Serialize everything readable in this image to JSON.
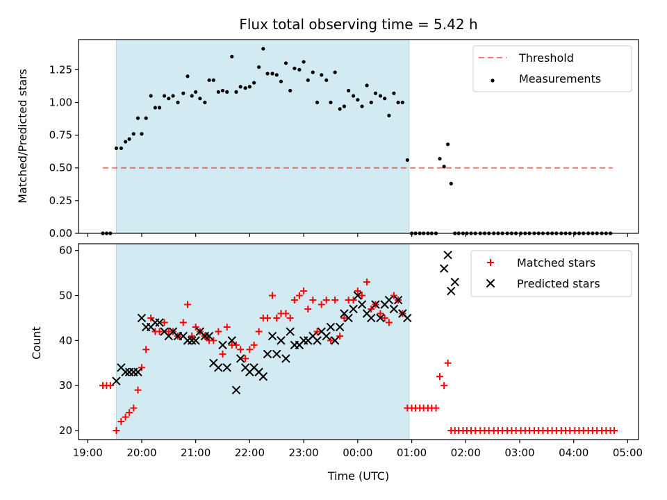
{
  "chart_data": {
    "title": "Flux total observing time = 5.42 h",
    "xlabel": "Time (UTC)",
    "x_ticks": [
      "19:00",
      "20:00",
      "21:00",
      "22:00",
      "23:00",
      "00:00",
      "01:00",
      "02:00",
      "03:00",
      "04:00",
      "05:00"
    ],
    "x_tick_hours": [
      19,
      20,
      21,
      22,
      23,
      24,
      25,
      26,
      27,
      28,
      29
    ],
    "x_range_hours": [
      18.83,
      29.2
    ],
    "observing_window_hours": [
      19.53,
      24.95
    ],
    "colors": {
      "shade": "#add8e6",
      "threshold": "#ff0000",
      "measurements": "#000000",
      "matched": "#ff0000",
      "predicted": "#000000"
    },
    "panels": [
      {
        "type": "scatter",
        "ylabel": "Matched/Predicted stars",
        "ylim": [
          0,
          1.48
        ],
        "y_ticks": [
          "0.00",
          "0.25",
          "0.50",
          "0.75",
          "1.00",
          "1.25"
        ],
        "y_tick_values": [
          0,
          0.25,
          0.5,
          0.75,
          1.0,
          1.25
        ],
        "legend_position": "top-right",
        "threshold": {
          "name": "Threshold",
          "value": 0.5,
          "x_range_hours": [
            19.28,
            28.72
          ]
        },
        "series": [
          {
            "name": "Measurements",
            "x": [
              19.28,
              19.35,
              19.42,
              19.53,
              19.62,
              19.7,
              19.77,
              19.85,
              19.93,
              20.0,
              20.08,
              20.17,
              20.25,
              20.33,
              20.42,
              20.5,
              20.58,
              20.67,
              20.77,
              20.85,
              20.93,
              21.0,
              21.08,
              21.17,
              21.25,
              21.33,
              21.42,
              21.5,
              21.58,
              21.67,
              21.75,
              21.83,
              21.92,
              22.0,
              22.08,
              22.17,
              22.25,
              22.33,
              22.42,
              22.5,
              22.58,
              22.67,
              22.75,
              22.83,
              22.92,
              23.0,
              23.08,
              23.17,
              23.25,
              23.33,
              23.42,
              23.5,
              23.58,
              23.67,
              23.75,
              23.83,
              23.92,
              24.0,
              24.08,
              24.17,
              24.25,
              24.33,
              24.42,
              24.5,
              24.58,
              24.67,
              24.75,
              24.83,
              24.92,
              25.0,
              25.07,
              25.15,
              25.22,
              25.3,
              25.37,
              25.45,
              25.52,
              25.6,
              25.67,
              25.73,
              25.8,
              25.87,
              25.95,
              26.02,
              26.1,
              26.18,
              26.27,
              26.35,
              26.43,
              26.52,
              26.6,
              26.68,
              26.77,
              26.85,
              26.93,
              27.02,
              27.1,
              27.18,
              27.27,
              27.35,
              27.43,
              27.52,
              27.6,
              27.68,
              27.77,
              27.85,
              27.93,
              28.02,
              28.1,
              28.18,
              28.27,
              28.35,
              28.43,
              28.52,
              28.6,
              28.68
            ],
            "y": [
              0,
              0,
              0,
              0.65,
              0.65,
              0.7,
              0.72,
              0.76,
              0.88,
              0.76,
              0.88,
              1.05,
              0.96,
              0.96,
              1.05,
              1.03,
              1.05,
              1.0,
              1.07,
              1.2,
              1.05,
              1.08,
              1.03,
              1.0,
              1.17,
              1.17,
              1.08,
              1.09,
              1.08,
              1.35,
              1.08,
              1.12,
              1.11,
              1.12,
              1.15,
              1.27,
              1.41,
              1.22,
              1.22,
              1.21,
              1.16,
              1.3,
              1.09,
              1.26,
              1.25,
              1.31,
              1.17,
              1.23,
              1.0,
              1.21,
              1.17,
              1.0,
              1.23,
              0.95,
              0.97,
              1.09,
              1.05,
              1.02,
              0.97,
              1.13,
              1.0,
              1.07,
              1.05,
              1.03,
              0.9,
              1.07,
              1.0,
              1.0,
              0.56,
              0,
              0,
              0,
              0,
              0,
              0,
              0,
              0.57,
              0.51,
              0.68,
              0.38,
              0,
              0,
              0,
              0,
              0,
              0,
              0,
              0,
              0,
              0,
              0,
              0,
              0,
              0,
              0,
              0,
              0,
              0,
              0,
              0,
              0,
              0,
              0,
              0,
              0,
              0,
              0,
              0,
              0,
              0,
              0,
              0,
              0,
              0,
              0,
              0
            ]
          }
        ]
      },
      {
        "type": "scatter",
        "ylabel": "Count",
        "ylim": [
          18,
          61.5
        ],
        "y_ticks": [
          "20",
          "30",
          "40",
          "50",
          "60"
        ],
        "y_tick_values": [
          20,
          30,
          40,
          50,
          60
        ],
        "legend_position": "top-right",
        "series": [
          {
            "name": "Matched stars",
            "marker": "plus",
            "x": [
              19.28,
              19.35,
              19.42,
              19.53,
              19.62,
              19.7,
              19.77,
              19.85,
              19.93,
              20.0,
              20.08,
              20.17,
              20.25,
              20.33,
              20.42,
              20.5,
              20.58,
              20.67,
              20.77,
              20.85,
              20.93,
              21.0,
              21.08,
              21.17,
              21.25,
              21.33,
              21.42,
              21.5,
              21.58,
              21.67,
              21.75,
              21.83,
              21.92,
              22.0,
              22.08,
              22.17,
              22.25,
              22.33,
              22.42,
              22.5,
              22.58,
              22.67,
              22.75,
              22.83,
              22.92,
              23.0,
              23.08,
              23.17,
              23.25,
              23.33,
              23.42,
              23.5,
              23.58,
              23.67,
              23.75,
              23.83,
              23.92,
              24.0,
              24.08,
              24.17,
              24.25,
              24.33,
              24.42,
              24.5,
              24.58,
              24.67,
              24.75,
              24.83,
              24.92,
              25.0,
              25.07,
              25.15,
              25.22,
              25.3,
              25.37,
              25.45,
              25.52,
              25.6,
              25.67,
              25.73,
              25.8,
              25.87,
              25.95,
              26.02,
              26.1,
              26.18,
              26.27,
              26.35,
              26.43,
              26.52,
              26.6,
              26.68,
              26.77,
              26.85,
              26.93,
              27.02,
              27.1,
              27.18,
              27.27,
              27.35,
              27.43,
              27.52,
              27.6,
              27.68,
              27.77,
              27.85,
              27.93,
              28.02,
              28.1,
              28.18,
              28.27,
              28.35,
              28.43,
              28.52,
              28.6,
              28.68,
              28.75
            ],
            "y": [
              30,
              30,
              30,
              20,
              22,
              23,
              24,
              25,
              29,
              34,
              38,
              45,
              42,
              42,
              44,
              42,
              42,
              41,
              44,
              48,
              41,
              43,
              42,
              41,
              40,
              40,
              42,
              37,
              43,
              39,
              39,
              38,
              36,
              38,
              39,
              42,
              45,
              45,
              50,
              45,
              46,
              46,
              45,
              49,
              50,
              51,
              47,
              49,
              42,
              48,
              49,
              40,
              49,
              41,
              45,
              49,
              49,
              51,
              50,
              53,
              47,
              48,
              46,
              45,
              44,
              50,
              49,
              46,
              25,
              25,
              25,
              25,
              25,
              25,
              25,
              25,
              32,
              30,
              35,
              20,
              20,
              20,
              20,
              20,
              20,
              20,
              20,
              20,
              20,
              20,
              20,
              20,
              20,
              20,
              20,
              20,
              20,
              20,
              20,
              20,
              20,
              20,
              20,
              20,
              20,
              20,
              20,
              20,
              20,
              20,
              20,
              20,
              20,
              20,
              20,
              20,
              20
            ]
          },
          {
            "name": "Predicted stars",
            "marker": "x",
            "x": [
              19.53,
              19.62,
              19.7,
              19.77,
              19.85,
              19.93,
              20.0,
              20.08,
              20.17,
              20.25,
              20.33,
              20.42,
              20.5,
              20.58,
              20.67,
              20.77,
              20.85,
              20.93,
              21.0,
              21.08,
              21.17,
              21.25,
              21.33,
              21.42,
              21.5,
              21.58,
              21.67,
              21.75,
              21.83,
              21.92,
              22.0,
              22.08,
              22.17,
              22.25,
              22.33,
              22.42,
              22.5,
              22.58,
              22.67,
              22.75,
              22.83,
              22.92,
              23.0,
              23.08,
              23.17,
              23.25,
              23.33,
              23.42,
              23.5,
              23.58,
              23.67,
              23.75,
              23.83,
              23.92,
              24.0,
              24.08,
              24.17,
              24.25,
              24.33,
              24.42,
              24.5,
              24.58,
              24.67,
              24.75,
              24.83,
              24.92,
              25.6,
              25.67,
              25.73,
              25.8
            ],
            "y": [
              31,
              34,
              33,
              33,
              33,
              33,
              45,
              43,
              43,
              44,
              44,
              42,
              41,
              42,
              41,
              41,
              40,
              40,
              40,
              42,
              41,
              41,
              35,
              34,
              39,
              34,
              40,
              29,
              36,
              34,
              33,
              34,
              33,
              32,
              37,
              41,
              37,
              40,
              36,
              42,
              39,
              39,
              40,
              40,
              41,
              40,
              42,
              41,
              43,
              40,
              43,
              46,
              45,
              47,
              50,
              48,
              46,
              45,
              48,
              45,
              48,
              49,
              47,
              49,
              46,
              45,
              56,
              59,
              51,
              53
            ]
          }
        ]
      }
    ]
  }
}
